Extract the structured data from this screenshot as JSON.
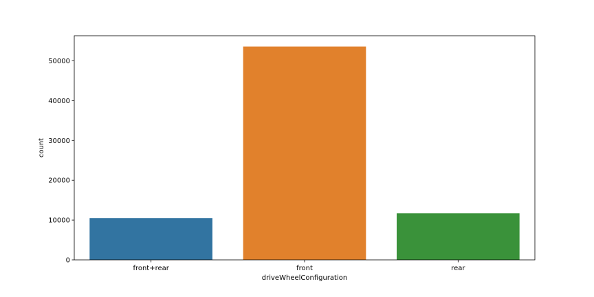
{
  "chart_data": {
    "type": "bar",
    "categories": [
      "front+rear",
      "front",
      "rear"
    ],
    "values": [
      10500,
      53600,
      11700
    ],
    "xlabel": "driveWheelConfiguration",
    "ylabel": "count",
    "ylim": [
      0,
      56300
    ],
    "yticks": [
      0,
      10000,
      20000,
      30000,
      40000,
      50000
    ],
    "colors": [
      "#3274a1",
      "#e1812c",
      "#3a923a"
    ],
    "grid": false,
    "legend": "none"
  }
}
